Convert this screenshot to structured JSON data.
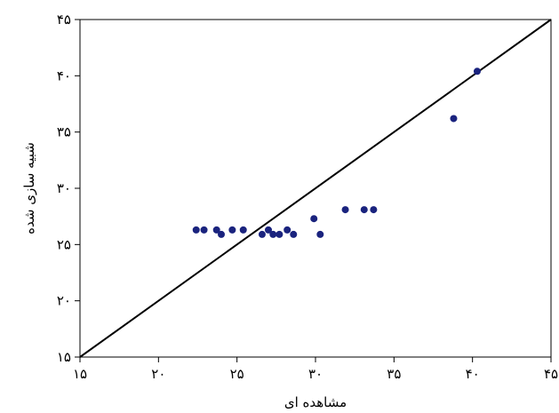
{
  "chart_data": {
    "type": "scatter",
    "xlabel": "مشاهده ای",
    "ylabel": "شبیه سازی شده",
    "xlim": [
      15,
      45
    ],
    "ylim": [
      15,
      45
    ],
    "x_ticks": [
      15,
      20,
      25,
      30,
      35,
      40,
      45
    ],
    "y_ticks": [
      15,
      20,
      25,
      30,
      35,
      40,
      45
    ],
    "x_tick_labels": [
      "۱۵",
      "۲۰",
      "۲۵",
      "۳۰",
      "۳۵",
      "۴۰",
      "۴۵"
    ],
    "y_tick_labels": [
      "۱۵",
      "۲۰",
      "۲۵",
      "۳۰",
      "۳۵",
      "۴۰",
      "۴۵"
    ],
    "grid": false,
    "reference_line": {
      "type": "1:1",
      "from": [
        15,
        15
      ],
      "to": [
        45,
        45
      ]
    },
    "marker_color": "#1a237e",
    "line_color": "#000000",
    "points": [
      {
        "x": 22.4,
        "y": 26.3
      },
      {
        "x": 22.9,
        "y": 26.3
      },
      {
        "x": 23.7,
        "y": 26.3
      },
      {
        "x": 24.0,
        "y": 25.9
      },
      {
        "x": 24.7,
        "y": 26.3
      },
      {
        "x": 25.4,
        "y": 26.3
      },
      {
        "x": 26.6,
        "y": 25.9
      },
      {
        "x": 27.0,
        "y": 26.3
      },
      {
        "x": 27.3,
        "y": 25.9
      },
      {
        "x": 27.7,
        "y": 25.9
      },
      {
        "x": 28.2,
        "y": 26.3
      },
      {
        "x": 28.6,
        "y": 25.9
      },
      {
        "x": 29.9,
        "y": 27.3
      },
      {
        "x": 30.3,
        "y": 25.9
      },
      {
        "x": 31.9,
        "y": 28.1
      },
      {
        "x": 33.1,
        "y": 28.1
      },
      {
        "x": 33.7,
        "y": 28.1
      },
      {
        "x": 38.8,
        "y": 36.2
      },
      {
        "x": 40.3,
        "y": 40.4
      }
    ]
  }
}
